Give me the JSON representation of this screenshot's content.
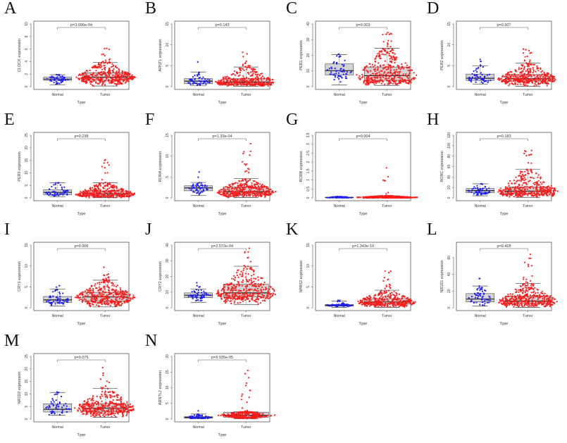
{
  "figure": {
    "groups": [
      "Normal",
      "Tumor"
    ],
    "xlabel": "Type",
    "colors": {
      "Normal": "#1a1aff",
      "Tumor": "#ff1a1a",
      "box_fill": "#d3d3d3"
    }
  },
  "chart_data": [
    {
      "panel": "A",
      "type": "box-beeswarm",
      "ylabel": "CLOCK expression",
      "p_value": "p=3.096e-04",
      "ylim": [
        0,
        10
      ],
      "yticks": [
        0,
        2,
        4,
        6,
        8,
        10
      ],
      "categories": [
        "Normal",
        "Tumor"
      ],
      "series": [
        {
          "name": "Normal",
          "q1": 1.0,
          "median": 1.2,
          "q3": 1.5,
          "whisker_low": 0.3,
          "whisker_high": 1.9,
          "max": 1.9,
          "min": 0.2
        },
        {
          "name": "Tumor",
          "q1": 1.0,
          "median": 1.5,
          "q3": 2.2,
          "whisker_low": 0.1,
          "whisker_high": 3.9,
          "max": 6.1,
          "min": 0.1
        }
      ]
    },
    {
      "panel": "B",
      "type": "box-beeswarm",
      "ylabel": "ARNTL expression",
      "p_value": "p=0.143",
      "ylim": [
        0,
        15
      ],
      "yticks": [
        0,
        5,
        10,
        15
      ],
      "categories": [
        "Normal",
        "Tumor"
      ],
      "series": [
        {
          "name": "Normal",
          "q1": 0.7,
          "median": 1.3,
          "q3": 1.9,
          "whisker_low": 0.2,
          "whisker_high": 3.5,
          "max": 5.9,
          "min": 0.2
        },
        {
          "name": "Tumor",
          "q1": 0.6,
          "median": 1.1,
          "q3": 1.9,
          "whisker_low": 0.1,
          "whisker_high": 4.7,
          "max": 8.2,
          "min": 0.1
        }
      ]
    },
    {
      "panel": "C",
      "type": "box-beeswarm",
      "ylabel": "PER1 expression",
      "p_value": "p=0.003",
      "ylim": [
        0,
        40
      ],
      "yticks": [
        0,
        10,
        20,
        30,
        40
      ],
      "categories": [
        "Normal",
        "Tumor"
      ],
      "series": [
        {
          "name": "Normal",
          "q1": 7.5,
          "median": 10.2,
          "q3": 14.5,
          "whisker_low": 1.0,
          "whisker_high": 20.5,
          "max": 20.7,
          "min": 1.0
        },
        {
          "name": "Tumor",
          "q1": 4.0,
          "median": 7.0,
          "q3": 12.5,
          "whisker_low": 0.8,
          "whisker_high": 24.5,
          "max": 34.5,
          "min": 0.8
        }
      ]
    },
    {
      "panel": "D",
      "type": "box-beeswarm",
      "ylabel": "PER2 expression",
      "p_value": "p=0.607",
      "ylim": [
        0,
        15
      ],
      "yticks": [
        0,
        5,
        10,
        15
      ],
      "categories": [
        "Normal",
        "Tumor"
      ],
      "series": [
        {
          "name": "Normal",
          "q1": 1.5,
          "median": 2.0,
          "q3": 3.0,
          "whisker_low": 0.6,
          "whisker_high": 5.0,
          "max": 6.5,
          "min": 0.6
        },
        {
          "name": "Tumor",
          "q1": 1.3,
          "median": 1.9,
          "q3": 2.9,
          "whisker_low": 0.1,
          "whisker_high": 5.6,
          "max": 9.0,
          "min": 0.1
        }
      ]
    },
    {
      "panel": "E",
      "type": "box-beeswarm",
      "ylabel": "PER3 expression",
      "p_value": "p=0.238",
      "ylim": [
        0,
        25
      ],
      "yticks": [
        0,
        5,
        10,
        15,
        20,
        25
      ],
      "categories": [
        "Normal",
        "Tumor"
      ],
      "series": [
        {
          "name": "Normal",
          "q1": 1.3,
          "median": 2.2,
          "q3": 3.2,
          "whisker_low": 0.4,
          "whisker_high": 6.0,
          "max": 6.0,
          "min": 0.4
        },
        {
          "name": "Tumor",
          "q1": 0.9,
          "median": 1.6,
          "q3": 2.8,
          "whisker_low": 0.1,
          "whisker_high": 6.0,
          "max": 15.2,
          "min": 0.1
        }
      ]
    },
    {
      "panel": "F",
      "type": "box-beeswarm",
      "ylabel": "RORA expression",
      "p_value": "p=1.33e-04",
      "ylim": [
        0,
        15
      ],
      "yticks": [
        0,
        5,
        10,
        15
      ],
      "categories": [
        "Normal",
        "Tumor"
      ],
      "series": [
        {
          "name": "Normal",
          "q1": 1.7,
          "median": 2.4,
          "q3": 2.9,
          "whisker_low": 0.6,
          "whisker_high": 3.7,
          "max": 6.2,
          "min": 0.6
        },
        {
          "name": "Tumor",
          "q1": 0.9,
          "median": 1.5,
          "q3": 2.6,
          "whisker_low": 0.1,
          "whisker_high": 4.6,
          "max": 13.0,
          "min": 0.1
        }
      ]
    },
    {
      "panel": "G",
      "type": "box-beeswarm",
      "ylabel": "RORB expression",
      "p_value": "p=0.004",
      "ylim": [
        0,
        3.5
      ],
      "yticks": [
        0.0,
        0.5,
        1.0,
        1.5,
        2.0,
        2.5,
        3.0,
        3.5
      ],
      "categories": [
        "Normal",
        "Tumor"
      ],
      "series": [
        {
          "name": "Normal",
          "q1": 0.01,
          "median": 0.02,
          "q3": 0.04,
          "whisker_low": 0.0,
          "whisker_high": 0.08,
          "max": 0.08,
          "min": 0.0
        },
        {
          "name": "Tumor",
          "q1": 0.01,
          "median": 0.03,
          "q3": 0.06,
          "whisker_low": 0.0,
          "whisker_high": 0.12,
          "max": 1.68,
          "min": 0.0
        }
      ]
    },
    {
      "panel": "H",
      "type": "box-beeswarm",
      "ylabel": "RORC expression",
      "p_value": "p=0.183",
      "ylim": [
        0,
        120
      ],
      "yticks": [
        0,
        20,
        40,
        60,
        80,
        100,
        120
      ],
      "categories": [
        "Normal",
        "Tumor"
      ],
      "series": [
        {
          "name": "Normal",
          "q1": 10,
          "median": 14,
          "q3": 18,
          "whisker_low": 4,
          "whisker_high": 27,
          "max": 27,
          "min": 4
        },
        {
          "name": "Tumor",
          "q1": 8,
          "median": 13,
          "q3": 21,
          "whisker_low": 1,
          "whisker_high": 55,
          "max": 91,
          "min": 1
        }
      ]
    },
    {
      "panel": "I",
      "type": "box-beeswarm",
      "ylabel": "CRY1 expression",
      "p_value": "p=0.006",
      "ylim": [
        0,
        15
      ],
      "yticks": [
        0,
        5,
        10,
        15
      ],
      "categories": [
        "Normal",
        "Tumor"
      ],
      "series": [
        {
          "name": "Normal",
          "q1": 1.3,
          "median": 1.9,
          "q3": 2.7,
          "whisker_low": 0.4,
          "whisker_high": 4.5,
          "max": 5.3,
          "min": 0.4
        },
        {
          "name": "Tumor",
          "q1": 1.6,
          "median": 2.6,
          "q3": 3.7,
          "whisker_low": 0.2,
          "whisker_high": 6.6,
          "max": 9.7,
          "min": 0.2
        }
      ]
    },
    {
      "panel": "J",
      "type": "box-beeswarm",
      "ylabel": "CRY2 expression",
      "p_value": "p=2.572e-04",
      "ylim": [
        0,
        40
      ],
      "yticks": [
        0,
        10,
        20,
        30,
        40
      ],
      "categories": [
        "Normal",
        "Tumor"
      ],
      "series": [
        {
          "name": "Normal",
          "q1": 6.5,
          "median": 8.0,
          "q3": 9.5,
          "whisker_low": 3.5,
          "whisker_high": 12.0,
          "max": 16.0,
          "min": 3.5
        },
        {
          "name": "Tumor",
          "q1": 7.0,
          "median": 9.5,
          "q3": 15.0,
          "whisker_low": 2.0,
          "whisker_high": 26.5,
          "max": 38.0,
          "min": 2.0
        }
      ]
    },
    {
      "panel": "K",
      "type": "box-beeswarm",
      "ylabel": "NPAS2 expression",
      "p_value": "p=1.343e-10",
      "ylim": [
        0,
        15
      ],
      "yticks": [
        0,
        5,
        10,
        15
      ],
      "categories": [
        "Normal",
        "Tumor"
      ],
      "series": [
        {
          "name": "Normal",
          "q1": 0.4,
          "median": 0.6,
          "q3": 0.8,
          "whisker_low": 0.1,
          "whisker_high": 1.6,
          "max": 1.8,
          "min": 0.1
        },
        {
          "name": "Tumor",
          "q1": 0.9,
          "median": 1.4,
          "q3": 2.2,
          "whisker_low": 0.1,
          "whisker_high": 4.2,
          "max": 8.8,
          "min": 0.1
        }
      ]
    },
    {
      "panel": "L",
      "type": "box-beeswarm",
      "ylabel": "NR1D1 expression",
      "p_value": "p=0.428",
      "ylim": [
        0,
        75
      ],
      "yticks": [
        0,
        20,
        40,
        60
      ],
      "categories": [
        "Normal",
        "Tumor"
      ],
      "series": [
        {
          "name": "Normal",
          "q1": 7,
          "median": 10.5,
          "q3": 17,
          "whisker_low": 2,
          "whisker_high": 26,
          "max": 35,
          "min": 2
        },
        {
          "name": "Tumor",
          "q1": 5,
          "median": 8,
          "q3": 14,
          "whisker_low": 0.5,
          "whisker_high": 29,
          "max": 64,
          "min": 0.5
        }
      ]
    },
    {
      "panel": "M",
      "type": "box-beeswarm",
      "ylabel": "NR1D2 expression",
      "p_value": "p=0.075",
      "ylim": [
        0,
        25
      ],
      "yticks": [
        0,
        5,
        10,
        15,
        20,
        25
      ],
      "categories": [
        "Normal",
        "Tumor"
      ],
      "series": [
        {
          "name": "Normal",
          "q1": 2.8,
          "median": 3.9,
          "q3": 6.1,
          "whisker_low": 1.5,
          "whisker_high": 10.6,
          "max": 10.8,
          "min": 1.5
        },
        {
          "name": "Tumor",
          "q1": 3.0,
          "median": 4.3,
          "q3": 6.2,
          "whisker_low": 0.7,
          "whisker_high": 12.2,
          "max": 20.5,
          "min": 0.7
        }
      ]
    },
    {
      "panel": "N",
      "type": "box-beeswarm",
      "ylabel": "ARNTL2 expression",
      "p_value": "p=9.935e-05",
      "ylim": [
        0,
        20
      ],
      "yticks": [
        0,
        5,
        10,
        15,
        20
      ],
      "categories": [
        "Normal",
        "Tumor"
      ],
      "series": [
        {
          "name": "Normal",
          "q1": 0.3,
          "median": 0.5,
          "q3": 0.8,
          "whisker_low": 0.1,
          "whisker_high": 1.6,
          "max": 2.6,
          "min": 0.1
        },
        {
          "name": "Tumor",
          "q1": 0.6,
          "median": 1.2,
          "q3": 2.2,
          "whisker_low": 0.1,
          "whisker_high": 2.3,
          "max": 15.5,
          "min": 0.1
        }
      ]
    }
  ]
}
